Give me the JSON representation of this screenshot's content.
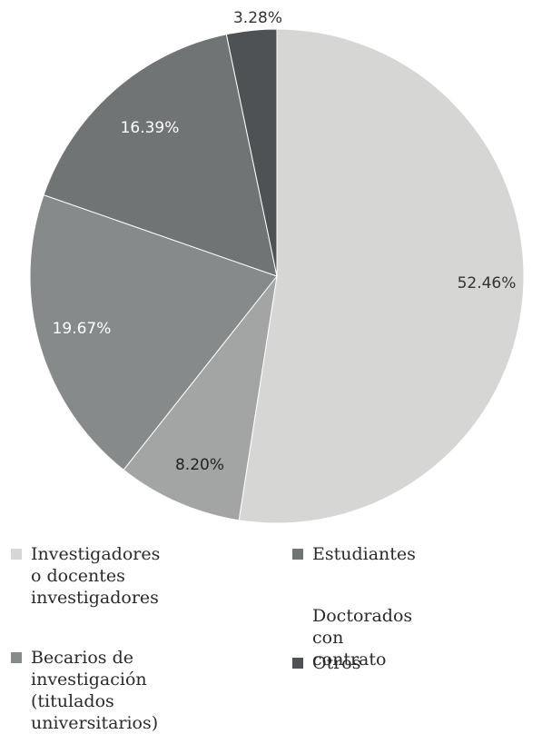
{
  "chart_data": {
    "type": "pie",
    "slices": [
      {
        "label": "Investigadores o docentes investigadores",
        "value": 52.46,
        "display": "52.46%",
        "color": "#d6d7d5",
        "label_color": "#333333"
      },
      {
        "label": "",
        "value": 8.2,
        "display": "8.20%",
        "color": "#a2a5a4",
        "label_color": "#222222"
      },
      {
        "label": "Becarios de investigación (titulados universitarios)",
        "value": 19.67,
        "display": "19.67%",
        "color": "#878a8b",
        "label_color": "#ffffff"
      },
      {
        "label": "Estudiantes",
        "value": 16.39,
        "display": "16.39%",
        "color": "#717475",
        "label_color": "#ffffff"
      },
      {
        "label": "Otros",
        "value": 3.28,
        "display": "3.28%",
        "color": "#4e5254",
        "label_color": "#333333"
      }
    ],
    "legend": [
      {
        "text": "Investigadores o docentes\ninvestigadores",
        "color": "#d6d7d5"
      },
      {
        "text": "Estudiantes",
        "color": "#717475"
      },
      {
        "text": "Doctorados con contrato",
        "color": "#ffffff"
      },
      {
        "text": "Becarios de investigación\n(titulados universitarios)",
        "color": "#878a8b"
      },
      {
        "text": "Otros",
        "color": "#4e5254"
      }
    ]
  }
}
